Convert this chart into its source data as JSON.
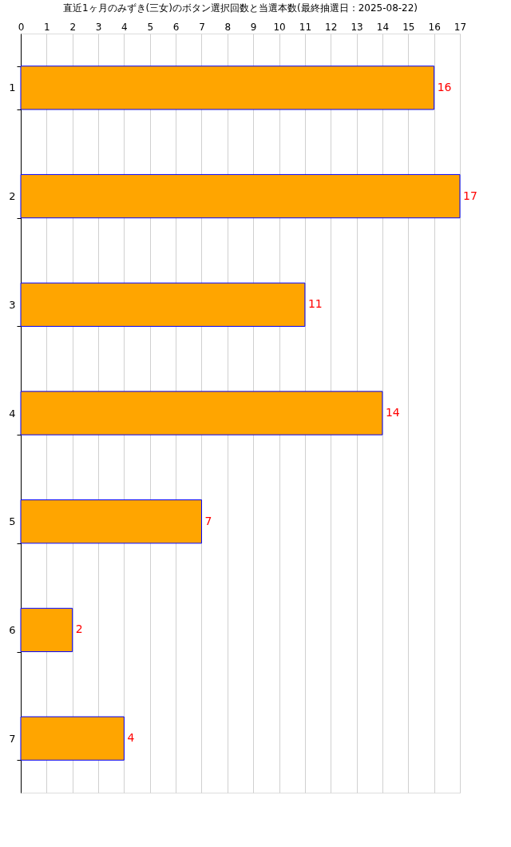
{
  "chart_data": {
    "type": "bar",
    "orientation": "horizontal",
    "title": "直近1ヶ月のみずき(三女)のボタン選択回数と当選本数(最終抽選日：2025-08-22)",
    "categories": [
      "1",
      "2",
      "3",
      "4",
      "5",
      "6",
      "7"
    ],
    "values": [
      16,
      17,
      11,
      14,
      7,
      2,
      4
    ],
    "color": "#ffa500",
    "xlim": [
      0,
      17
    ],
    "xticks": [
      0,
      1,
      2,
      3,
      4,
      5,
      6,
      7,
      8,
      9,
      10,
      11,
      12,
      13,
      14,
      15,
      16,
      17
    ],
    "grid": "x",
    "data_labels": true
  }
}
